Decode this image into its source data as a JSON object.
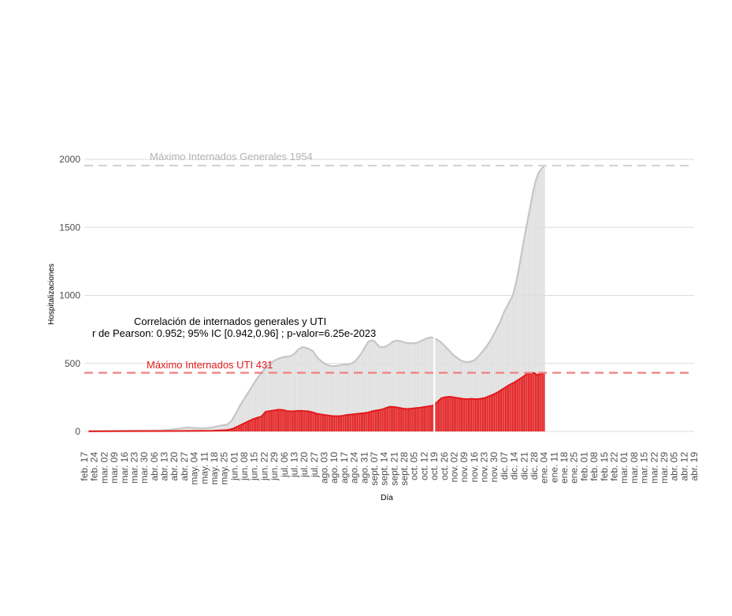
{
  "chart_data": {
    "type": "bar",
    "xlabel": "Día",
    "ylabel": "Hospitalizaciones",
    "ylim": [
      -100,
      2100
    ],
    "yticks": [
      0,
      500,
      1000,
      1500,
      2000
    ],
    "grid": true,
    "x_ticks": [
      "feb. 17",
      "feb. 24",
      "mar. 02",
      "mar. 09",
      "mar. 16",
      "mar. 23",
      "mar. 30",
      "abr. 06",
      "abr. 13",
      "abr. 20",
      "abr. 27",
      "may. 04",
      "may. 11",
      "may. 18",
      "may. 25",
      "jun. 01",
      "jun. 08",
      "jun. 15",
      "jun. 22",
      "jun. 29",
      "jul. 06",
      "jul. 13",
      "jul. 20",
      "jul. 27",
      "ago. 03",
      "ago. 10",
      "ago. 17",
      "ago. 24",
      "ago. 31",
      "sept. 07",
      "sept. 14",
      "sept. 21",
      "sept. 28",
      "oct. 05",
      "oct. 12",
      "oct. 19",
      "oct. 26",
      "nov. 02",
      "nov. 09",
      "nov. 16",
      "nov. 23",
      "nov. 30",
      "dic. 07",
      "dic. 14",
      "dic. 21",
      "dic. 28",
      "ene. 04",
      "ene. 11",
      "ene. 18",
      "ene. 25",
      "feb. 01",
      "feb. 08",
      "feb. 15",
      "feb. 22",
      "mar. 01",
      "mar. 08",
      "mar. 15",
      "mar. 22",
      "mar. 29",
      "abr. 05",
      "abr. 12",
      "abr. 19"
    ],
    "series": [
      {
        "name": "Internados generales",
        "color": "#d3d3d3",
        "points": [
          [
            3,
            2
          ],
          [
            10,
            3
          ],
          [
            20,
            4
          ],
          [
            30,
            5
          ],
          [
            40,
            6
          ],
          [
            48,
            7
          ],
          [
            54,
            8
          ],
          [
            58,
            10
          ],
          [
            62,
            15
          ],
          [
            66,
            20
          ],
          [
            69,
            25
          ],
          [
            72,
            30
          ],
          [
            75,
            28
          ],
          [
            78,
            25
          ],
          [
            82,
            22
          ],
          [
            86,
            25
          ],
          [
            90,
            30
          ],
          [
            94,
            40
          ],
          [
            97,
            45
          ],
          [
            100,
            50
          ],
          [
            103,
            75
          ],
          [
            106,
            130
          ],
          [
            109,
            190
          ],
          [
            112,
            240
          ],
          [
            115,
            290
          ],
          [
            118,
            340
          ],
          [
            121,
            390
          ],
          [
            124,
            430
          ],
          [
            127,
            470
          ],
          [
            130,
            500
          ],
          [
            133,
            520
          ],
          [
            136,
            535
          ],
          [
            139,
            545
          ],
          [
            142,
            550
          ],
          [
            145,
            555
          ],
          [
            148,
            580
          ],
          [
            150,
            605
          ],
          [
            153,
            620
          ],
          [
            156,
            612
          ],
          [
            158,
            602
          ],
          [
            160,
            590
          ],
          [
            163,
            545
          ],
          [
            166,
            515
          ],
          [
            169,
            495
          ],
          [
            172,
            482
          ],
          [
            175,
            480
          ],
          [
            178,
            485
          ],
          [
            181,
            490
          ],
          [
            184,
            492
          ],
          [
            187,
            498
          ],
          [
            190,
            520
          ],
          [
            193,
            560
          ],
          [
            195,
            590
          ],
          [
            197,
            630
          ],
          [
            199,
            660
          ],
          [
            201,
            670
          ],
          [
            203,
            665
          ],
          [
            205,
            640
          ],
          [
            207,
            620
          ],
          [
            210,
            620
          ],
          [
            213,
            635
          ],
          [
            216,
            660
          ],
          [
            219,
            668
          ],
          [
            222,
            662
          ],
          [
            225,
            652
          ],
          [
            228,
            648
          ],
          [
            231,
            648
          ],
          [
            234,
            655
          ],
          [
            237,
            672
          ],
          [
            240,
            685
          ],
          [
            243,
            692
          ],
          [
            246,
            680
          ],
          [
            249,
            662
          ],
          [
            252,
            632
          ],
          [
            255,
            600
          ],
          [
            258,
            565
          ],
          [
            261,
            540
          ],
          [
            264,
            520
          ],
          [
            267,
            510
          ],
          [
            270,
            512
          ],
          [
            273,
            522
          ],
          [
            276,
            552
          ],
          [
            279,
            590
          ],
          [
            282,
            630
          ],
          [
            285,
            680
          ],
          [
            288,
            740
          ],
          [
            291,
            800
          ],
          [
            294,
            880
          ],
          [
            297,
            940
          ],
          [
            300,
            1000
          ],
          [
            302,
            1080
          ],
          [
            304,
            1180
          ],
          [
            306,
            1300
          ],
          [
            308,
            1420
          ],
          [
            310,
            1530
          ],
          [
            312,
            1640
          ],
          [
            314,
            1750
          ],
          [
            316,
            1840
          ],
          [
            318,
            1900
          ],
          [
            320,
            1930
          ],
          [
            322,
            1954
          ]
        ]
      },
      {
        "name": "Internados UTI",
        "color": "#e31a1c",
        "points": [
          [
            3,
            1
          ],
          [
            30,
            2
          ],
          [
            60,
            3
          ],
          [
            90,
            5
          ],
          [
            100,
            10
          ],
          [
            104,
            20
          ],
          [
            108,
            40
          ],
          [
            112,
            60
          ],
          [
            115,
            75
          ],
          [
            118,
            90
          ],
          [
            121,
            100
          ],
          [
            124,
            110
          ],
          [
            127,
            145
          ],
          [
            130,
            150
          ],
          [
            133,
            155
          ],
          [
            136,
            160
          ],
          [
            139,
            158
          ],
          [
            142,
            150
          ],
          [
            145,
            148
          ],
          [
            148,
            150
          ],
          [
            151,
            152
          ],
          [
            154,
            150
          ],
          [
            157,
            148
          ],
          [
            160,
            140
          ],
          [
            163,
            130
          ],
          [
            166,
            125
          ],
          [
            169,
            120
          ],
          [
            172,
            115
          ],
          [
            175,
            112
          ],
          [
            178,
            112
          ],
          [
            181,
            115
          ],
          [
            184,
            122
          ],
          [
            187,
            125
          ],
          [
            190,
            128
          ],
          [
            193,
            132
          ],
          [
            196,
            135
          ],
          [
            199,
            140
          ],
          [
            202,
            150
          ],
          [
            205,
            155
          ],
          [
            208,
            160
          ],
          [
            211,
            172
          ],
          [
            214,
            182
          ],
          [
            217,
            180
          ],
          [
            220,
            175
          ],
          [
            223,
            168
          ],
          [
            226,
            165
          ],
          [
            229,
            168
          ],
          [
            232,
            172
          ],
          [
            235,
            175
          ],
          [
            238,
            180
          ],
          [
            241,
            185
          ],
          [
            244,
            190
          ],
          [
            247,
            215
          ],
          [
            250,
            245
          ],
          [
            253,
            252
          ],
          [
            256,
            255
          ],
          [
            259,
            250
          ],
          [
            262,
            245
          ],
          [
            265,
            240
          ],
          [
            268,
            238
          ],
          [
            271,
            240
          ],
          [
            274,
            238
          ],
          [
            277,
            240
          ],
          [
            280,
            245
          ],
          [
            283,
            258
          ],
          [
            286,
            270
          ],
          [
            289,
            285
          ],
          [
            292,
            305
          ],
          [
            295,
            325
          ],
          [
            298,
            345
          ],
          [
            301,
            360
          ],
          [
            304,
            380
          ],
          [
            307,
            400
          ],
          [
            310,
            425
          ],
          [
            313,
            428
          ],
          [
            315,
            430
          ],
          [
            317,
            415
          ],
          [
            319,
            420
          ],
          [
            321,
            428
          ],
          [
            322,
            431
          ]
        ]
      }
    ],
    "gap_day": 245,
    "reference_lines": [
      {
        "name": "Máximo Internados Generales",
        "value": 1954,
        "color": "#d3d3d3"
      },
      {
        "name": "Máximo Internados UTI",
        "value": 431,
        "color": "#f08080"
      }
    ]
  },
  "annotations": {
    "max_general": "Máximo Internados Generales 1954",
    "max_uti": "Máximo Internados UTI 431",
    "correlation_title": "Correlación de internados generales y UTI",
    "correlation_stats": "r de Pearson: 0.952; 95% IC [0.942,0.96] ; p-valor=6.25e-2023"
  }
}
